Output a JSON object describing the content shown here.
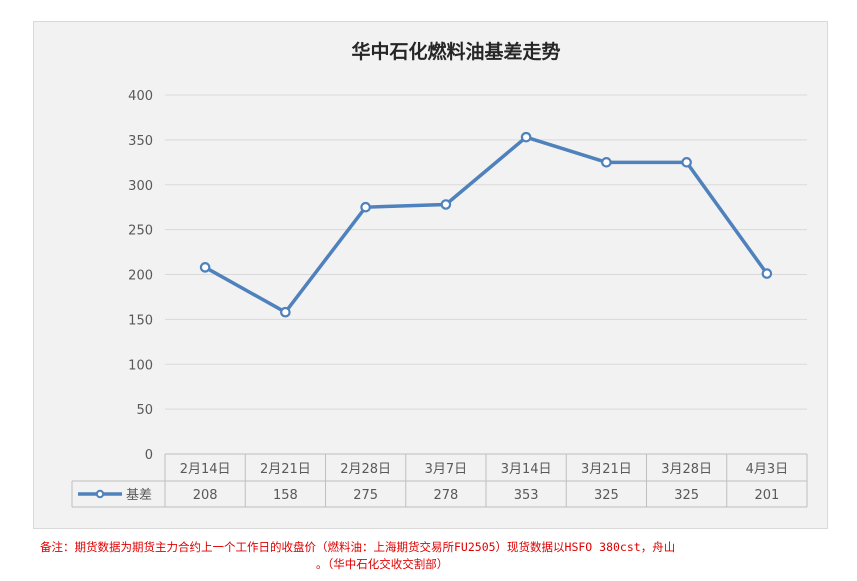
{
  "chart_data": {
    "type": "line",
    "title": "华中石化燃料油基差走势",
    "categories": [
      "2月14日",
      "2月21日",
      "2月28日",
      "3月7日",
      "3月14日",
      "3月21日",
      "3月28日",
      "4月3日"
    ],
    "series": [
      {
        "name": "基差",
        "values": [
          208,
          158,
          275,
          278,
          353,
          325,
          325,
          201
        ]
      }
    ],
    "ylim": [
      0,
      400
    ],
    "yticks": [
      0,
      50,
      100,
      150,
      200,
      250,
      300,
      350,
      400
    ],
    "grid": true,
    "legend": "data-table-left",
    "data_table": true,
    "colors": {
      "series": "#4f81bd",
      "grid": "#d9d9d9",
      "background": "#f2f2f2",
      "text": "#595959"
    }
  },
  "note": {
    "line1": "备注：期货数据为期货主力合约上一个工作日的收盘价（燃料油：上海期货交易所FU2505）现货数据以HSFO 380cst，舟山",
    "line2": "。（华中石化交收交割部）"
  }
}
